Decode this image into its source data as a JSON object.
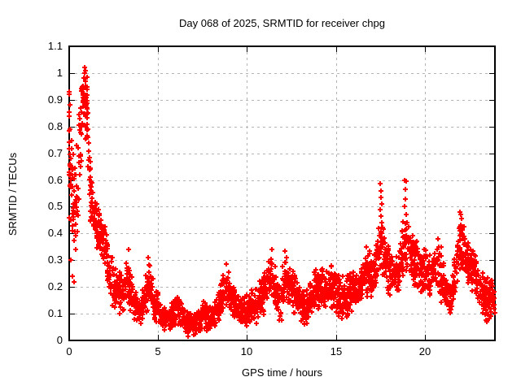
{
  "chart_data": {
    "type": "scatter",
    "title": "Day 068 of 2025, SRMTID for receiver chpg",
    "xlabel": "GPS time / hours",
    "ylabel": "SRMTID / TECUs",
    "xlim": [
      0,
      23.94
    ],
    "ylim": [
      0,
      1.1
    ],
    "xticks": [
      0,
      5,
      10,
      15,
      20
    ],
    "xtick_labels": [
      "0",
      "5",
      "10",
      "15",
      "20"
    ],
    "yticks": [
      0,
      0.1,
      0.2,
      0.3,
      0.4,
      0.5,
      0.6,
      0.7,
      0.8,
      0.9,
      1.0,
      1.1
    ],
    "ytick_labels": [
      "0",
      "0.1",
      "0.2",
      "0.3",
      "0.4",
      "0.5",
      "0.6",
      "0.7",
      "0.8",
      "0.9",
      "1",
      "1.1"
    ],
    "grid": true,
    "legend": "none",
    "colors": {
      "marker": "#ff0000",
      "grid": "#b4b4b4",
      "axis": "#000000",
      "text": "#000000",
      "background": "#ffffff"
    },
    "marker": {
      "shape": "plus",
      "size": 7,
      "stroke_width": 2
    },
    "series": [
      {
        "name": "SRMTID",
        "seed": 20250068,
        "points_per_hour": 70,
        "envelope": [
          [
            0.0,
            0.45,
            0.94
          ],
          [
            0.35,
            0.28,
            0.72
          ],
          [
            0.55,
            0.45,
            0.9
          ],
          [
            0.75,
            0.8,
            1.02
          ],
          [
            1.0,
            0.72,
            1.0
          ],
          [
            1.15,
            0.45,
            0.72
          ],
          [
            1.4,
            0.36,
            0.55
          ],
          [
            1.7,
            0.32,
            0.48
          ],
          [
            2.05,
            0.25,
            0.44
          ],
          [
            2.35,
            0.12,
            0.33
          ],
          [
            2.75,
            0.09,
            0.28
          ],
          [
            3.1,
            0.1,
            0.27
          ],
          [
            3.35,
            0.11,
            0.32
          ],
          [
            3.65,
            0.06,
            0.2
          ],
          [
            4.0,
            0.05,
            0.16
          ],
          [
            4.3,
            0.08,
            0.24
          ],
          [
            4.55,
            0.09,
            0.3
          ],
          [
            4.85,
            0.06,
            0.2
          ],
          [
            5.3,
            0.04,
            0.13
          ],
          [
            5.7,
            0.04,
            0.14
          ],
          [
            6.05,
            0.05,
            0.2
          ],
          [
            6.45,
            0.02,
            0.12
          ],
          [
            6.9,
            0.01,
            0.1
          ],
          [
            7.25,
            0.02,
            0.12
          ],
          [
            7.55,
            0.03,
            0.16
          ],
          [
            7.9,
            0.03,
            0.13
          ],
          [
            8.3,
            0.05,
            0.16
          ],
          [
            8.65,
            0.1,
            0.24
          ],
          [
            8.9,
            0.12,
            0.28
          ],
          [
            9.2,
            0.08,
            0.22
          ],
          [
            9.6,
            0.05,
            0.16
          ],
          [
            10.1,
            0.05,
            0.18
          ],
          [
            10.6,
            0.06,
            0.21
          ],
          [
            11.0,
            0.1,
            0.27
          ],
          [
            11.35,
            0.15,
            0.34
          ],
          [
            11.6,
            0.1,
            0.3
          ],
          [
            11.85,
            0.04,
            0.24
          ],
          [
            12.15,
            0.14,
            0.33
          ],
          [
            12.5,
            0.1,
            0.28
          ],
          [
            12.9,
            0.07,
            0.22
          ],
          [
            13.25,
            0.05,
            0.18
          ],
          [
            13.7,
            0.09,
            0.26
          ],
          [
            14.2,
            0.12,
            0.3
          ],
          [
            14.7,
            0.12,
            0.29
          ],
          [
            15.1,
            0.09,
            0.27
          ],
          [
            15.45,
            0.07,
            0.25
          ],
          [
            15.9,
            0.1,
            0.25
          ],
          [
            16.3,
            0.13,
            0.28
          ],
          [
            16.7,
            0.16,
            0.35
          ],
          [
            17.1,
            0.16,
            0.33
          ],
          [
            17.4,
            0.22,
            0.45
          ],
          [
            17.6,
            0.24,
            0.5
          ],
          [
            17.85,
            0.18,
            0.38
          ],
          [
            18.2,
            0.15,
            0.33
          ],
          [
            18.55,
            0.17,
            0.35
          ],
          [
            18.8,
            0.24,
            0.47
          ],
          [
            19.0,
            0.24,
            0.5
          ],
          [
            19.3,
            0.2,
            0.4
          ],
          [
            19.7,
            0.17,
            0.36
          ],
          [
            20.1,
            0.16,
            0.34
          ],
          [
            20.5,
            0.17,
            0.36
          ],
          [
            20.85,
            0.14,
            0.37
          ],
          [
            21.2,
            0.11,
            0.25
          ],
          [
            21.5,
            0.1,
            0.22
          ],
          [
            21.8,
            0.18,
            0.4
          ],
          [
            22.0,
            0.27,
            0.48
          ],
          [
            22.2,
            0.24,
            0.43
          ],
          [
            22.5,
            0.2,
            0.38
          ],
          [
            22.9,
            0.15,
            0.31
          ],
          [
            23.25,
            0.1,
            0.26
          ],
          [
            23.6,
            0.08,
            0.24
          ],
          [
            23.94,
            0.09,
            0.26
          ]
        ],
        "extra_points": [
          [
            0.02,
            0.92
          ],
          [
            0.03,
            0.88
          ],
          [
            0.01,
            0.84
          ],
          [
            0.04,
            0.79
          ],
          [
            0.02,
            0.74
          ],
          [
            0.05,
            0.66
          ],
          [
            0.03,
            0.58
          ],
          [
            0.1,
            0.3
          ],
          [
            0.18,
            0.24
          ],
          [
            0.28,
            0.22
          ],
          [
            0.36,
            0.34
          ],
          [
            0.85,
            1.02
          ],
          [
            0.9,
            1.01
          ],
          [
            0.88,
            1.0
          ],
          [
            0.83,
            0.98
          ],
          [
            0.92,
            0.97
          ],
          [
            3.32,
            0.34
          ],
          [
            4.45,
            0.31
          ],
          [
            8.85,
            0.285
          ],
          [
            11.38,
            0.34
          ],
          [
            12.12,
            0.335
          ],
          [
            16.7,
            0.35
          ],
          [
            17.5,
            0.585
          ],
          [
            17.52,
            0.56
          ],
          [
            17.55,
            0.535
          ],
          [
            17.57,
            0.51
          ],
          [
            17.5,
            0.49
          ],
          [
            17.54,
            0.465
          ],
          [
            17.6,
            0.44
          ],
          [
            18.88,
            0.6
          ],
          [
            18.93,
            0.595
          ],
          [
            18.9,
            0.565
          ],
          [
            18.9,
            0.53
          ],
          [
            18.86,
            0.5
          ],
          [
            18.94,
            0.47
          ],
          [
            18.98,
            0.44
          ],
          [
            20.75,
            0.38
          ],
          [
            21.95,
            0.48
          ],
          [
            22.0,
            0.47
          ],
          [
            22.05,
            0.455
          ],
          [
            23.42,
            0.075
          ],
          [
            23.46,
            0.07
          ]
        ]
      }
    ]
  }
}
